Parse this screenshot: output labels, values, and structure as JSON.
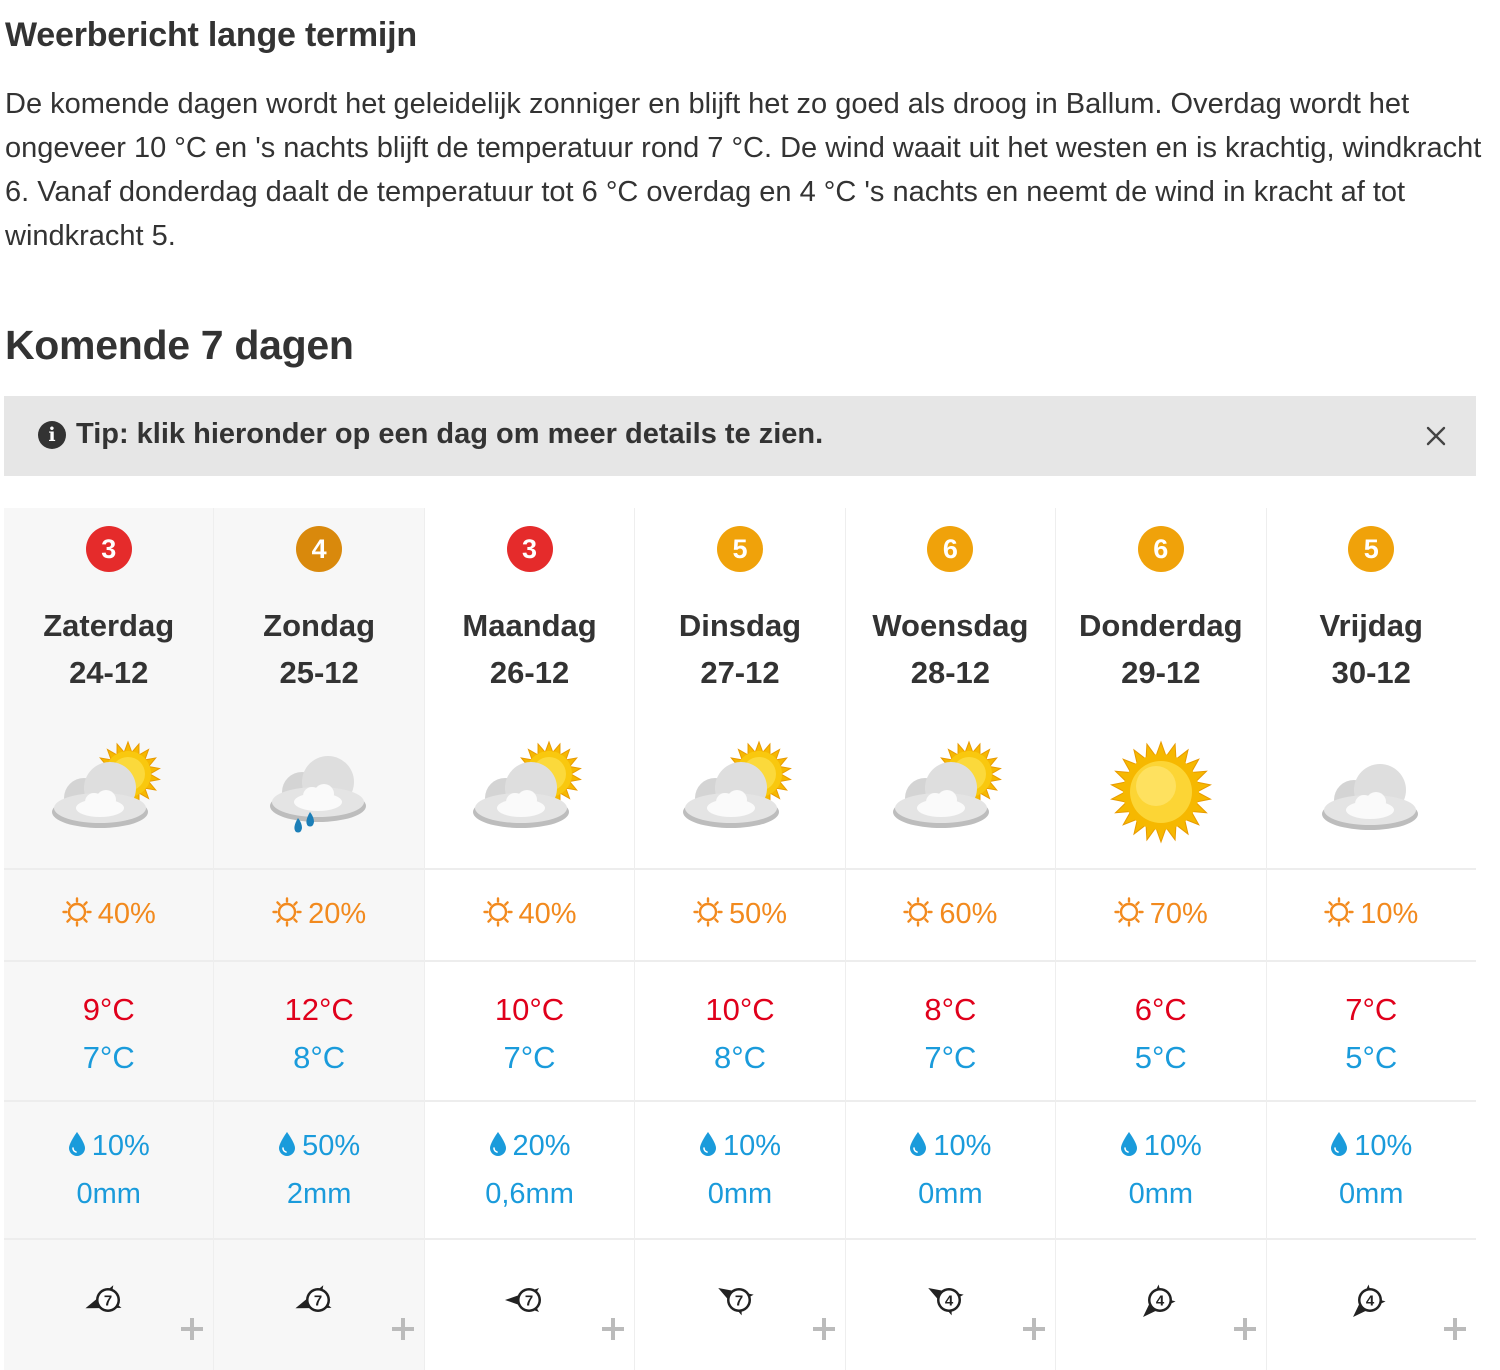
{
  "long_term": {
    "title": "Weerbericht lange termijn",
    "text": "De komende dagen wordt het geleidelijk zonniger en blijft het zo goed als droog in Ballum. Overdag wordt het ongeveer 10 °C en 's nachts blijft de temperatuur rond 7 °C. De wind waait uit het westen en is krachtig, windkracht 6. Vanaf donderdag daalt de temperatuur tot 6 °C overdag en 4 °C 's nachts en neemt de wind in kracht af tot windkracht 5."
  },
  "week": {
    "title": "Komende 7 dagen",
    "tip": "Tip: klik hieronder op een dag om meer details te zien."
  },
  "colors": {
    "score_red": "#e52b2b",
    "score_dark_orange": "#d9890c",
    "score_orange": "#f0a20a",
    "sun": "#f28a1e",
    "max_temp": "#e0001b",
    "min_temp": "#1a9bdb"
  },
  "days": [
    {
      "score": "3",
      "score_color": "#e52b2b",
      "name": "Zaterdag",
      "date": "24-12",
      "icon": "partly-cloudy-icon",
      "sun": "40%",
      "max": "9°C",
      "min": "7°C",
      "rain_chance": "10%",
      "rain_mm": "0mm",
      "wind_force": "7",
      "wind_dir_deg": 250,
      "shaded": true
    },
    {
      "score": "4",
      "score_color": "#d9890c",
      "name": "Zondag",
      "date": "25-12",
      "icon": "cloud-rain-icon",
      "sun": "20%",
      "max": "12°C",
      "min": "8°C",
      "rain_chance": "50%",
      "rain_mm": "2mm",
      "wind_force": "7",
      "wind_dir_deg": 250,
      "shaded": true
    },
    {
      "score": "3",
      "score_color": "#e52b2b",
      "name": "Maandag",
      "date": "26-12",
      "icon": "partly-cloudy-icon",
      "sun": "40%",
      "max": "10°C",
      "min": "7°C",
      "rain_chance": "20%",
      "rain_mm": "0,6mm",
      "wind_force": "7",
      "wind_dir_deg": 270,
      "shaded": false
    },
    {
      "score": "5",
      "score_color": "#f0a20a",
      "name": "Dinsdag",
      "date": "27-12",
      "icon": "partly-cloudy-icon",
      "sun": "50%",
      "max": "10°C",
      "min": "8°C",
      "rain_chance": "10%",
      "rain_mm": "0mm",
      "wind_force": "7",
      "wind_dir_deg": 300,
      "shaded": false
    },
    {
      "score": "6",
      "score_color": "#f0a20a",
      "name": "Woensdag",
      "date": "28-12",
      "icon": "partly-cloudy-icon",
      "sun": "60%",
      "max": "8°C",
      "min": "7°C",
      "rain_chance": "10%",
      "rain_mm": "0mm",
      "wind_force": "4",
      "wind_dir_deg": 300,
      "shaded": false
    },
    {
      "score": "6",
      "score_color": "#f0a20a",
      "name": "Donderdag",
      "date": "29-12",
      "icon": "sun-icon",
      "sun": "70%",
      "max": "6°C",
      "min": "5°C",
      "rain_chance": "10%",
      "rain_mm": "0mm",
      "wind_force": "4",
      "wind_dir_deg": 225,
      "shaded": false
    },
    {
      "score": "5",
      "score_color": "#f0a20a",
      "name": "Vrijdag",
      "date": "30-12",
      "icon": "cloud-icon",
      "sun": "10%",
      "max": "7°C",
      "min": "5°C",
      "rain_chance": "10%",
      "rain_mm": "0mm",
      "wind_force": "4",
      "wind_dir_deg": 225,
      "shaded": false
    }
  ]
}
